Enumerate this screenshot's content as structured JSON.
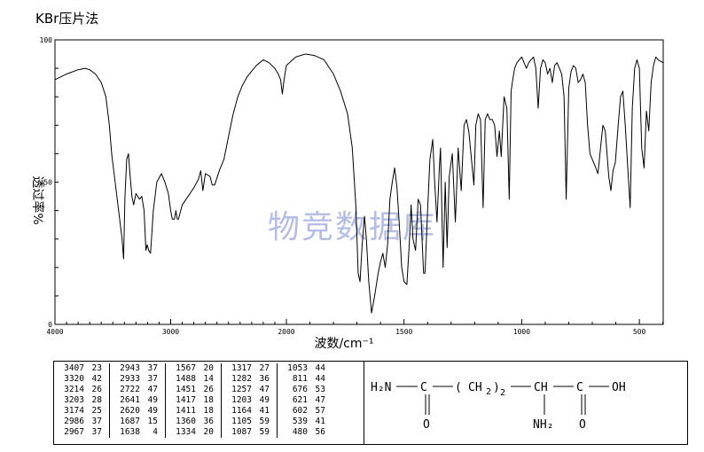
{
  "header": {
    "title": "KBr压片法"
  },
  "chart_data": {
    "type": "line",
    "title": "KBr压片法",
    "xlabel": "波数/cm⁻¹",
    "ylabel": "透过率%",
    "xlim": [
      4000,
      400
    ],
    "ylim": [
      0,
      100
    ],
    "x_ticks": [
      4000,
      3000,
      2000,
      1500,
      1000,
      500
    ],
    "y_ticks": [
      0,
      50,
      100
    ],
    "grid": false,
    "watermark": "物竞数据库",
    "series": [
      {
        "points": [
          [
            4000,
            86
          ],
          [
            3900,
            88
          ],
          [
            3800,
            89.5
          ],
          [
            3740,
            90
          ],
          [
            3700,
            89.5
          ],
          [
            3650,
            88
          ],
          [
            3600,
            85
          ],
          [
            3560,
            80
          ],
          [
            3530,
            70
          ],
          [
            3510,
            60
          ],
          [
            3480,
            50
          ],
          [
            3450,
            40
          ],
          [
            3420,
            30
          ],
          [
            3407,
            23
          ],
          [
            3395,
            45
          ],
          [
            3380,
            58
          ],
          [
            3365,
            60
          ],
          [
            3350,
            52
          ],
          [
            3335,
            45
          ],
          [
            3320,
            42
          ],
          [
            3300,
            46
          ],
          [
            3270,
            44
          ],
          [
            3250,
            45
          ],
          [
            3230,
            40
          ],
          [
            3214,
            26
          ],
          [
            3203,
            28
          ],
          [
            3190,
            26
          ],
          [
            3174,
            25
          ],
          [
            3150,
            40
          ],
          [
            3120,
            50
          ],
          [
            3080,
            53
          ],
          [
            3050,
            50
          ],
          [
            3020,
            46
          ],
          [
            3000,
            40
          ],
          [
            2986,
            37
          ],
          [
            2967,
            37
          ],
          [
            2955,
            40
          ],
          [
            2943,
            37
          ],
          [
            2933,
            37
          ],
          [
            2900,
            42
          ],
          [
            2850,
            45
          ],
          [
            2800,
            48
          ],
          [
            2760,
            51
          ],
          [
            2740,
            54
          ],
          [
            2722,
            47
          ],
          [
            2700,
            53
          ],
          [
            2660,
            52
          ],
          [
            2641,
            49
          ],
          [
            2620,
            49
          ],
          [
            2580,
            54
          ],
          [
            2540,
            58
          ],
          [
            2500,
            66
          ],
          [
            2460,
            74
          ],
          [
            2420,
            80
          ],
          [
            2380,
            84
          ],
          [
            2340,
            87
          ],
          [
            2300,
            89
          ],
          [
            2260,
            91
          ],
          [
            2230,
            92
          ],
          [
            2200,
            93
          ],
          [
            2150,
            92
          ],
          [
            2100,
            90
          ],
          [
            2070,
            88
          ],
          [
            2050,
            86
          ],
          [
            2035,
            81
          ],
          [
            2020,
            86
          ],
          [
            2000,
            91
          ],
          [
            1960,
            94
          ],
          [
            1920,
            95
          ],
          [
            1880,
            94.5
          ],
          [
            1840,
            93
          ],
          [
            1800,
            88
          ],
          [
            1770,
            82
          ],
          [
            1740,
            74
          ],
          [
            1720,
            62
          ],
          [
            1705,
            42
          ],
          [
            1695,
            18
          ],
          [
            1687,
            15
          ],
          [
            1678,
            28
          ],
          [
            1668,
            38
          ],
          [
            1660,
            30
          ],
          [
            1650,
            15
          ],
          [
            1638,
            4
          ],
          [
            1625,
            10
          ],
          [
            1610,
            18
          ],
          [
            1600,
            22
          ],
          [
            1590,
            25
          ],
          [
            1580,
            20
          ],
          [
            1570,
            28
          ],
          [
            1560,
            44
          ],
          [
            1550,
            50
          ],
          [
            1540,
            55
          ],
          [
            1530,
            48
          ],
          [
            1520,
            35
          ],
          [
            1510,
            20
          ],
          [
            1500,
            15
          ],
          [
            1488,
            14
          ],
          [
            1478,
            28
          ],
          [
            1470,
            42
          ],
          [
            1462,
            30
          ],
          [
            1451,
            26
          ],
          [
            1440,
            44
          ],
          [
            1430,
            42
          ],
          [
            1417,
            18
          ],
          [
            1411,
            18
          ],
          [
            1400,
            40
          ],
          [
            1390,
            58
          ],
          [
            1378,
            65
          ],
          [
            1370,
            50
          ],
          [
            1360,
            36
          ],
          [
            1350,
            55
          ],
          [
            1345,
            62
          ],
          [
            1334,
            20
          ],
          [
            1325,
            50
          ],
          [
            1317,
            27
          ],
          [
            1308,
            52
          ],
          [
            1295,
            60
          ],
          [
            1282,
            36
          ],
          [
            1270,
            62
          ],
          [
            1257,
            47
          ],
          [
            1245,
            70
          ],
          [
            1235,
            72
          ],
          [
            1225,
            68
          ],
          [
            1203,
            49
          ],
          [
            1195,
            70
          ],
          [
            1185,
            74
          ],
          [
            1175,
            72
          ],
          [
            1164,
            41
          ],
          [
            1155,
            72
          ],
          [
            1145,
            74
          ],
          [
            1135,
            72
          ],
          [
            1125,
            72
          ],
          [
            1115,
            70
          ],
          [
            1105,
            59
          ],
          [
            1095,
            68
          ],
          [
            1087,
            59
          ],
          [
            1075,
            80
          ],
          [
            1063,
            76
          ],
          [
            1053,
            44
          ],
          [
            1045,
            82
          ],
          [
            1040,
            85
          ],
          [
            1030,
            90
          ],
          [
            1020,
            92
          ],
          [
            1010,
            93
          ],
          [
            1000,
            94
          ],
          [
            990,
            92
          ],
          [
            980,
            90
          ],
          [
            970,
            92
          ],
          [
            960,
            93
          ],
          [
            950,
            94
          ],
          [
            940,
            90
          ],
          [
            930,
            76
          ],
          [
            920,
            90
          ],
          [
            910,
            93
          ],
          [
            900,
            92
          ],
          [
            890,
            88
          ],
          [
            880,
            90
          ],
          [
            870,
            85
          ],
          [
            860,
            91
          ],
          [
            850,
            92
          ],
          [
            840,
            90
          ],
          [
            830,
            88
          ],
          [
            820,
            80
          ],
          [
            811,
            44
          ],
          [
            800,
            83
          ],
          [
            790,
            89
          ],
          [
            780,
            91
          ],
          [
            770,
            90
          ],
          [
            760,
            85
          ],
          [
            750,
            86
          ],
          [
            740,
            88
          ],
          [
            730,
            85
          ],
          [
            720,
            70
          ],
          [
            710,
            60
          ],
          [
            700,
            58
          ],
          [
            690,
            56
          ],
          [
            676,
            53
          ],
          [
            665,
            62
          ],
          [
            655,
            70
          ],
          [
            645,
            68
          ],
          [
            630,
            52
          ],
          [
            621,
            47
          ],
          [
            612,
            54
          ],
          [
            602,
            57
          ],
          [
            590,
            70
          ],
          [
            580,
            80
          ],
          [
            570,
            82
          ],
          [
            560,
            70
          ],
          [
            550,
            56
          ],
          [
            539,
            41
          ],
          [
            530,
            76
          ],
          [
            520,
            90
          ],
          [
            510,
            93
          ],
          [
            500,
            90
          ],
          [
            490,
            62
          ],
          [
            480,
            55
          ],
          [
            470,
            75
          ],
          [
            460,
            68
          ],
          [
            450,
            85
          ],
          [
            440,
            91
          ],
          [
            430,
            94
          ],
          [
            420,
            93
          ],
          [
            400,
            92
          ]
        ]
      }
    ]
  },
  "peak_table": {
    "columns": [
      [
        [
          "3407",
          "23"
        ],
        [
          "3320",
          "42"
        ],
        [
          "3214",
          "26"
        ],
        [
          "3203",
          "28"
        ],
        [
          "3174",
          "25"
        ],
        [
          "2986",
          "37"
        ],
        [
          "2967",
          "37"
        ]
      ],
      [
        [
          "2943",
          "37"
        ],
        [
          "2933",
          "37"
        ],
        [
          "2722",
          "47"
        ],
        [
          "2641",
          "49"
        ],
        [
          "2620",
          "49"
        ],
        [
          "1687",
          "15"
        ],
        [
          "1638",
          "4"
        ]
      ],
      [
        [
          "1567",
          "20"
        ],
        [
          "1488",
          "14"
        ],
        [
          "1451",
          "26"
        ],
        [
          "1417",
          "18"
        ],
        [
          "1411",
          "18"
        ],
        [
          "1360",
          "36"
        ],
        [
          "1334",
          "20"
        ]
      ],
      [
        [
          "1317",
          "27"
        ],
        [
          "1282",
          "36"
        ],
        [
          "1257",
          "47"
        ],
        [
          "1203",
          "49"
        ],
        [
          "1164",
          "41"
        ],
        [
          "1105",
          "59"
        ],
        [
          "1087",
          "59"
        ]
      ],
      [
        [
          "1053",
          "44"
        ],
        [
          "811",
          "44"
        ],
        [
          "676",
          "53"
        ],
        [
          "621",
          "47"
        ],
        [
          "602",
          "57"
        ],
        [
          "539",
          "41"
        ],
        [
          "480",
          "56"
        ]
      ]
    ]
  },
  "structure": {
    "h2n": "H₂N",
    "c1": "C",
    "o1": "O",
    "lparen": "(",
    "ch2": "CH",
    "sub2": "2",
    "rparen": ")",
    "n": "2",
    "ch": "CH",
    "nh2": "NH₂",
    "c2": "C",
    "o2": "O",
    "oh": "OH"
  }
}
